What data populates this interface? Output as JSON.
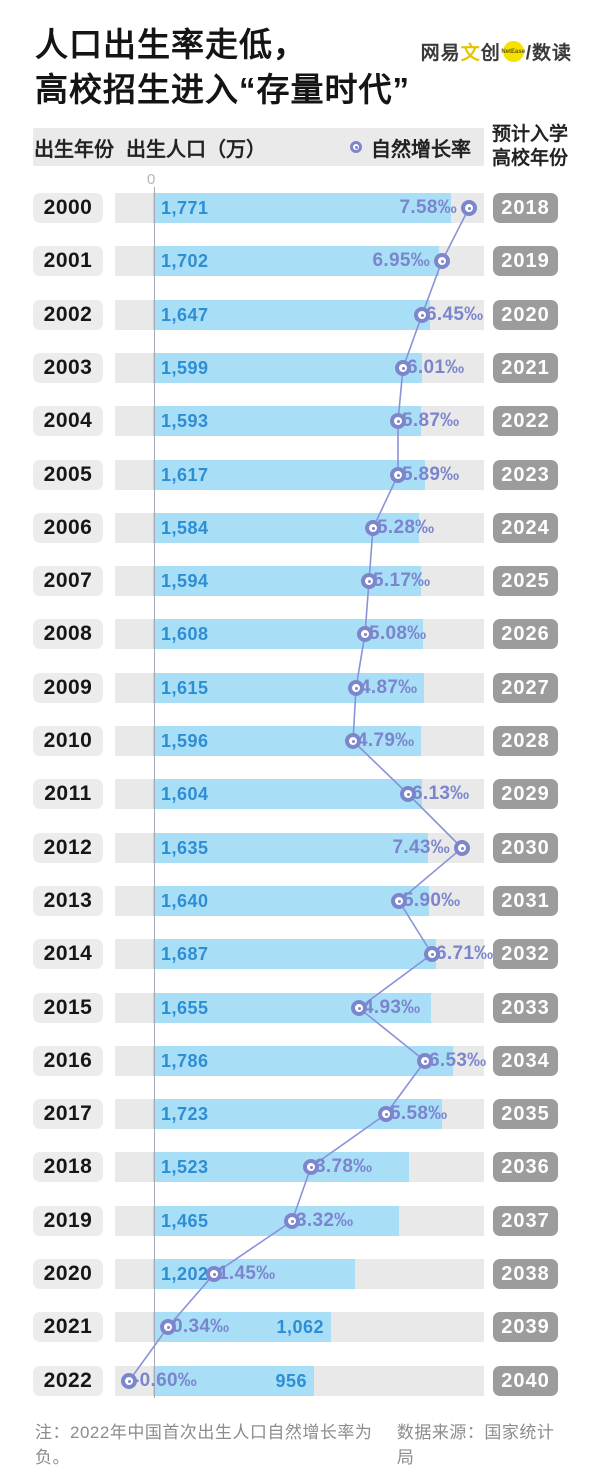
{
  "title": {
    "line1": "人口出生率走低，",
    "line2": "高校招生进入“存量时代”"
  },
  "logo": {
    "part1": "网易",
    "part2": "文",
    "part3": "创",
    "circle_text": "NetEase",
    "part4": "/数读",
    "accent_color": "#e8c400",
    "circle_color": "#f6e200"
  },
  "columns": {
    "year": "出生年份",
    "population": "出生人口（万）",
    "rate": "自然增长率",
    "college_line1": "预计入学",
    "college_line2": "高校年份"
  },
  "axis": {
    "zero_label": "0"
  },
  "colors": {
    "bar": "#a9def7",
    "bar_value_text": "#2d8ed3",
    "rate": "#7b85cd",
    "line": "#8a92d8",
    "track": "#e9e9e9",
    "year_badge_bg": "#ececec",
    "college_badge_bg": "#9c9c9c"
  },
  "rows": [
    {
      "year": "2000",
      "population": 1771,
      "population_label": "1,771",
      "rate": 7.58,
      "rate_label": "7.58‰",
      "college_year": "2018",
      "value_pos": "start",
      "rate_side": "left"
    },
    {
      "year": "2001",
      "population": 1702,
      "population_label": "1,702",
      "rate": 6.95,
      "rate_label": "6.95‰",
      "college_year": "2019",
      "value_pos": "start",
      "rate_side": "left"
    },
    {
      "year": "2002",
      "population": 1647,
      "population_label": "1,647",
      "rate": 6.45,
      "rate_label": "6.45‰",
      "college_year": "2020",
      "value_pos": "start",
      "rate_side": "right"
    },
    {
      "year": "2003",
      "population": 1599,
      "population_label": "1,599",
      "rate": 6.01,
      "rate_label": "6.01‰",
      "college_year": "2021",
      "value_pos": "start",
      "rate_side": "right"
    },
    {
      "year": "2004",
      "population": 1593,
      "population_label": "1,593",
      "rate": 5.87,
      "rate_label": "5.87‰",
      "college_year": "2022",
      "value_pos": "start",
      "rate_side": "right"
    },
    {
      "year": "2005",
      "population": 1617,
      "population_label": "1,617",
      "rate": 5.89,
      "rate_label": "5.89‰",
      "college_year": "2023",
      "value_pos": "start",
      "rate_side": "right"
    },
    {
      "year": "2006",
      "population": 1584,
      "population_label": "1,584",
      "rate": 5.28,
      "rate_label": "5.28‰",
      "college_year": "2024",
      "value_pos": "start",
      "rate_side": "right"
    },
    {
      "year": "2007",
      "population": 1594,
      "population_label": "1,594",
      "rate": 5.17,
      "rate_label": "5.17‰",
      "college_year": "2025",
      "value_pos": "start",
      "rate_side": "right"
    },
    {
      "year": "2008",
      "population": 1608,
      "population_label": "1,608",
      "rate": 5.08,
      "rate_label": "5.08‰",
      "college_year": "2026",
      "value_pos": "start",
      "rate_side": "right"
    },
    {
      "year": "2009",
      "population": 1615,
      "population_label": "1,615",
      "rate": 4.87,
      "rate_label": "4.87‰",
      "college_year": "2027",
      "value_pos": "start",
      "rate_side": "right"
    },
    {
      "year": "2010",
      "population": 1596,
      "population_label": "1,596",
      "rate": 4.79,
      "rate_label": "4.79‰",
      "college_year": "2028",
      "value_pos": "start",
      "rate_side": "right"
    },
    {
      "year": "2011",
      "population": 1604,
      "population_label": "1,604",
      "rate": 6.13,
      "rate_label": "6.13‰",
      "college_year": "2029",
      "value_pos": "start",
      "rate_side": "right"
    },
    {
      "year": "2012",
      "population": 1635,
      "population_label": "1,635",
      "rate": 7.43,
      "rate_label": "7.43‰",
      "college_year": "2030",
      "value_pos": "start",
      "rate_side": "left"
    },
    {
      "year": "2013",
      "population": 1640,
      "population_label": "1,640",
      "rate": 5.9,
      "rate_label": "5.90‰",
      "college_year": "2031",
      "value_pos": "start",
      "rate_side": "right"
    },
    {
      "year": "2014",
      "population": 1687,
      "population_label": "1,687",
      "rate": 6.71,
      "rate_label": "6.71‰",
      "college_year": "2032",
      "value_pos": "start",
      "rate_side": "right"
    },
    {
      "year": "2015",
      "population": 1655,
      "population_label": "1,655",
      "rate": 4.93,
      "rate_label": "4.93‰",
      "college_year": "2033",
      "value_pos": "start",
      "rate_side": "right"
    },
    {
      "year": "2016",
      "population": 1786,
      "population_label": "1,786",
      "rate": 6.53,
      "rate_label": "6.53‰",
      "college_year": "2034",
      "value_pos": "start",
      "rate_side": "right"
    },
    {
      "year": "2017",
      "population": 1723,
      "population_label": "1,723",
      "rate": 5.58,
      "rate_label": "5.58‰",
      "college_year": "2035",
      "value_pos": "start",
      "rate_side": "right"
    },
    {
      "year": "2018",
      "population": 1523,
      "population_label": "1,523",
      "rate": 3.78,
      "rate_label": "3.78‰",
      "college_year": "2036",
      "value_pos": "start",
      "rate_side": "right"
    },
    {
      "year": "2019",
      "population": 1465,
      "population_label": "1,465",
      "rate": 3.32,
      "rate_label": "3.32‰",
      "college_year": "2037",
      "value_pos": "start",
      "rate_side": "right"
    },
    {
      "year": "2020",
      "population": 1202,
      "population_label": "1,202",
      "rate": 1.45,
      "rate_label": "1.45‰",
      "college_year": "2038",
      "value_pos": "start",
      "rate_side": "right"
    },
    {
      "year": "2021",
      "population": 1062,
      "population_label": "1,062",
      "rate": 0.34,
      "rate_label": "0.34‰",
      "college_year": "2039",
      "value_pos": "bar-end",
      "rate_side": "right"
    },
    {
      "year": "2022",
      "population": 956,
      "population_label": "956",
      "rate": -0.6,
      "rate_label": "-0.60‰",
      "college_year": "2040",
      "value_pos": "bar-end",
      "rate_side": "right"
    }
  ],
  "footer": {
    "note": "注：2022年中国首次出生人口自然增长率为负。",
    "source": "数据来源：国家统计局"
  },
  "chart_data": {
    "type": "bar",
    "orientation": "horizontal",
    "categories": [
      2000,
      2001,
      2002,
      2003,
      2004,
      2005,
      2006,
      2007,
      2008,
      2009,
      2010,
      2011,
      2012,
      2013,
      2014,
      2015,
      2016,
      2017,
      2018,
      2019,
      2020,
      2021,
      2022
    ],
    "series": [
      {
        "name": "出生人口（万）",
        "type": "bar",
        "values": [
          1771,
          1702,
          1647,
          1599,
          1593,
          1617,
          1584,
          1594,
          1608,
          1615,
          1596,
          1604,
          1635,
          1640,
          1687,
          1655,
          1786,
          1723,
          1523,
          1465,
          1202,
          1062,
          956
        ]
      },
      {
        "name": "自然增长率（‰）",
        "type": "line",
        "values": [
          7.58,
          6.95,
          6.45,
          6.01,
          5.87,
          5.89,
          5.28,
          5.17,
          5.08,
          4.87,
          4.79,
          6.13,
          7.43,
          5.9,
          6.71,
          4.93,
          6.53,
          5.58,
          3.78,
          3.32,
          1.45,
          0.34,
          -0.6
        ]
      }
    ],
    "secondary_categories": {
      "name": "预计入学高校年份",
      "values": [
        2018,
        2019,
        2020,
        2021,
        2022,
        2023,
        2024,
        2025,
        2026,
        2027,
        2028,
        2029,
        2030,
        2031,
        2032,
        2033,
        2034,
        2035,
        2036,
        2037,
        2038,
        2039,
        2040
      ]
    },
    "title": "人口出生率走低，高校招生进入“存量时代”",
    "xlabel": "出生人口（万）",
    "ylabel": "出生年份",
    "bar_axis_origin_label": "0",
    "grid": false,
    "legend_position": "top-right-of-header-strip",
    "note": "注：2022年中国首次出生人口自然增长率为负。",
    "source": "数据来源：国家统计局"
  }
}
